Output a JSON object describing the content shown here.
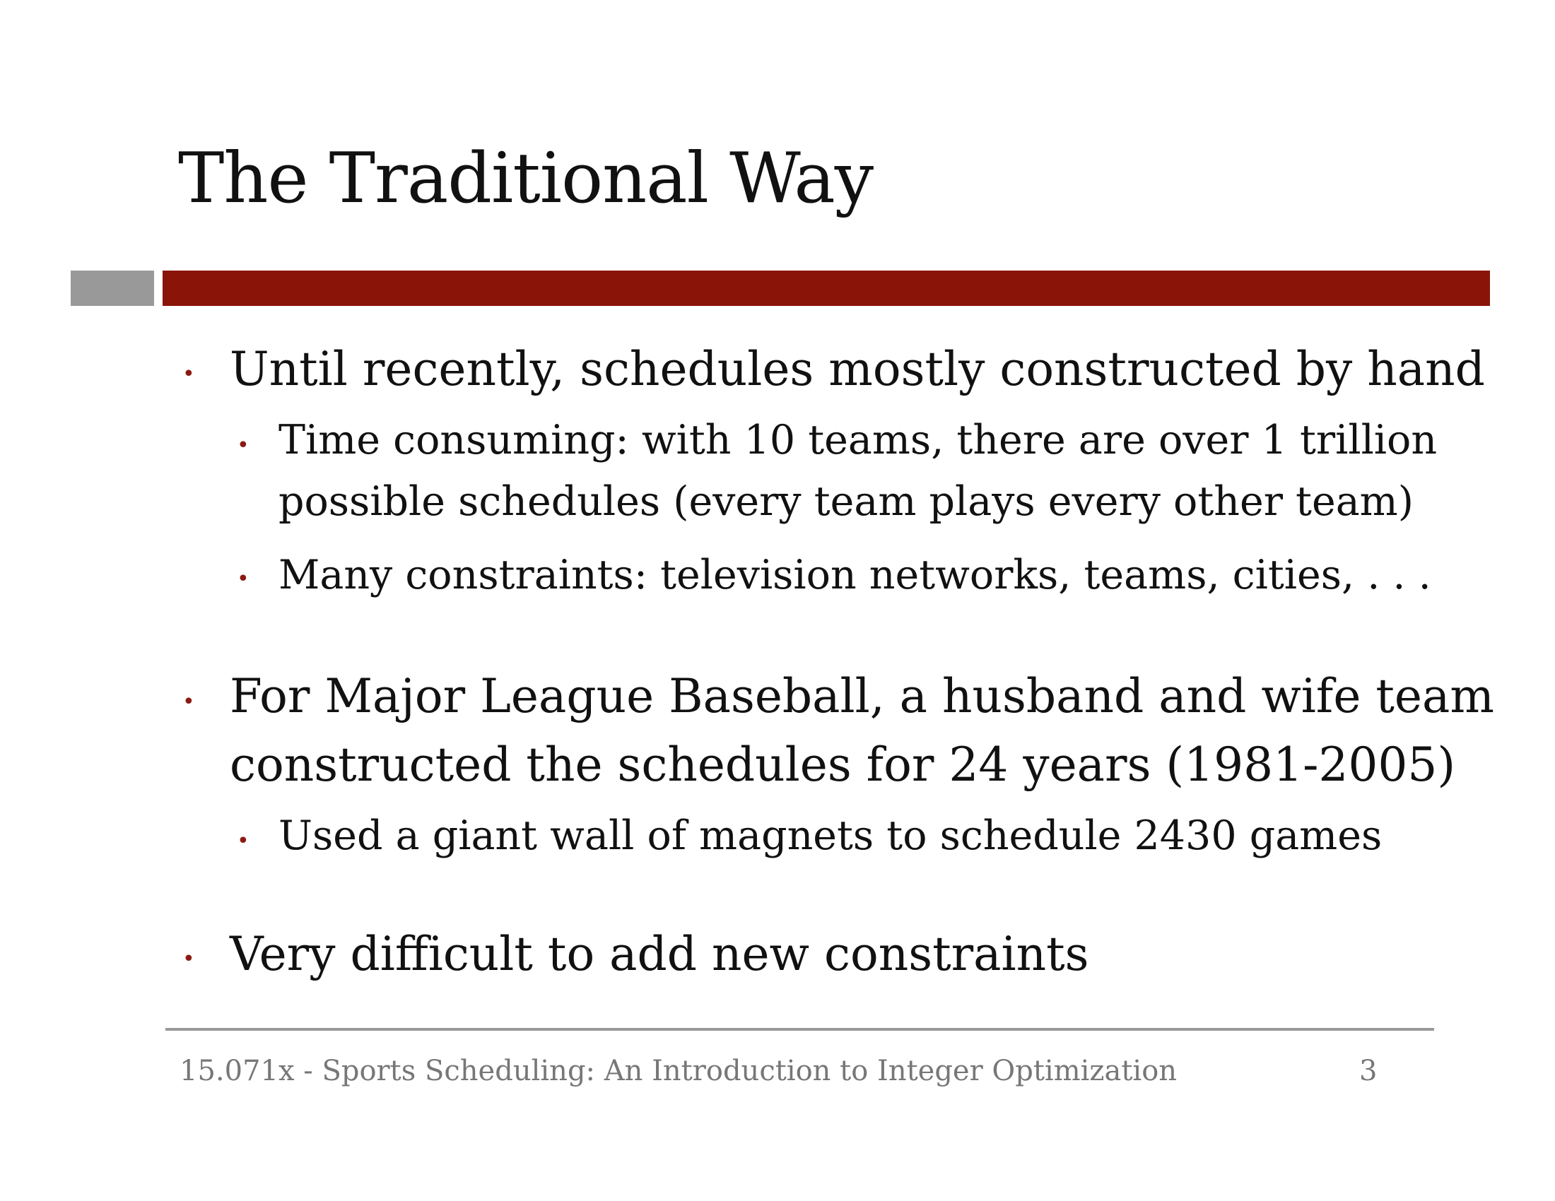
{
  "slide": {
    "title": "The Traditional Way",
    "bullet_char": "•",
    "bullets": [
      {
        "text": "Until recently, schedules mostly constructed by hand",
        "sub": [
          {
            "lines": [
              "Time consuming: with 10 teams, there are over 1 trillion",
              "possible schedules (every team plays every other team)"
            ]
          },
          {
            "lines": [
              "Many constraints: television networks, teams, cities, . . ."
            ]
          }
        ]
      },
      {
        "lines": [
          "For Major League Baseball, a husband and wife team",
          "constructed the schedules for 24 years (1981-2005)"
        ],
        "sub": [
          {
            "lines": [
              "Used a giant wall of magnets to schedule 2430 games"
            ]
          }
        ]
      },
      {
        "text": "Very difficult to add new constraints"
      }
    ],
    "footer": {
      "course": "15.071x - Sports Scheduling: An Introduction to Integer Optimization",
      "page": "3"
    },
    "colors": {
      "accent_red": "#8b1408",
      "accent_gray": "#999999",
      "footer_text": "#777777"
    }
  }
}
